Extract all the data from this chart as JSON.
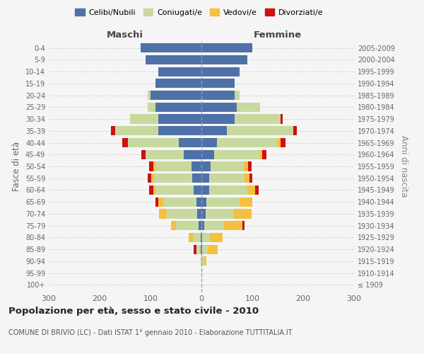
{
  "age_groups": [
    "100+",
    "95-99",
    "90-94",
    "85-89",
    "80-84",
    "75-79",
    "70-74",
    "65-69",
    "60-64",
    "55-59",
    "50-54",
    "45-49",
    "40-44",
    "35-39",
    "30-34",
    "25-29",
    "20-24",
    "15-19",
    "10-14",
    "5-9",
    "0-4"
  ],
  "birth_years": [
    "≤ 1909",
    "1910-1914",
    "1915-1919",
    "1920-1924",
    "1925-1929",
    "1930-1934",
    "1935-1939",
    "1940-1944",
    "1945-1949",
    "1950-1954",
    "1955-1959",
    "1960-1964",
    "1965-1969",
    "1970-1974",
    "1975-1979",
    "1980-1984",
    "1985-1989",
    "1990-1994",
    "1995-1999",
    "2000-2004",
    "2005-2009"
  ],
  "maschi": {
    "celibi": [
      0,
      0,
      0,
      2,
      2,
      5,
      8,
      10,
      15,
      18,
      20,
      35,
      45,
      85,
      85,
      90,
      100,
      90,
      85,
      110,
      120
    ],
    "coniugati": [
      0,
      0,
      2,
      8,
      15,
      45,
      60,
      65,
      75,
      75,
      70,
      75,
      100,
      85,
      55,
      15,
      5,
      0,
      0,
      0,
      0
    ],
    "vedovi": [
      0,
      0,
      0,
      0,
      8,
      10,
      15,
      10,
      5,
      5,
      5,
      0,
      0,
      0,
      0,
      0,
      0,
      0,
      0,
      0,
      0
    ],
    "divorziati": [
      0,
      0,
      0,
      5,
      0,
      0,
      0,
      5,
      8,
      8,
      8,
      8,
      10,
      8,
      0,
      0,
      0,
      0,
      0,
      0,
      0
    ]
  },
  "femmine": {
    "nubili": [
      0,
      0,
      0,
      2,
      2,
      5,
      8,
      10,
      15,
      15,
      18,
      25,
      30,
      50,
      65,
      70,
      65,
      65,
      75,
      90,
      100
    ],
    "coniugate": [
      0,
      0,
      5,
      10,
      15,
      40,
      55,
      65,
      75,
      70,
      65,
      90,
      120,
      130,
      90,
      45,
      10,
      0,
      0,
      0,
      0
    ],
    "vedove": [
      0,
      2,
      5,
      20,
      25,
      35,
      35,
      25,
      15,
      10,
      8,
      5,
      5,
      0,
      0,
      0,
      0,
      0,
      0,
      0,
      0
    ],
    "divorziate": [
      0,
      0,
      0,
      0,
      0,
      5,
      0,
      0,
      8,
      5,
      8,
      8,
      10,
      8,
      5,
      0,
      0,
      0,
      0,
      0,
      0
    ]
  },
  "colors": {
    "celibi": "#4e72a8",
    "coniugati": "#c8d9a0",
    "vedovi": "#f5c040",
    "divorziati": "#cc1111"
  },
  "xlim": 300,
  "title": "Popolazione per età, sesso e stato civile - 2010",
  "subtitle": "COMUNE DI BRIVIO (LC) - Dati ISTAT 1° gennaio 2010 - Elaborazione TUTTITALIA.IT",
  "ylabel_left": "Fasce di età",
  "ylabel_right": "Anni di nascita",
  "xlabel_maschi": "Maschi",
  "xlabel_femmine": "Femmine",
  "legend_labels": [
    "Celibi/Nubili",
    "Coniugati/e",
    "Vedovi/e",
    "Divorziati/e"
  ],
  "bg_color": "#f5f5f5",
  "grid_color": "#cccccc"
}
